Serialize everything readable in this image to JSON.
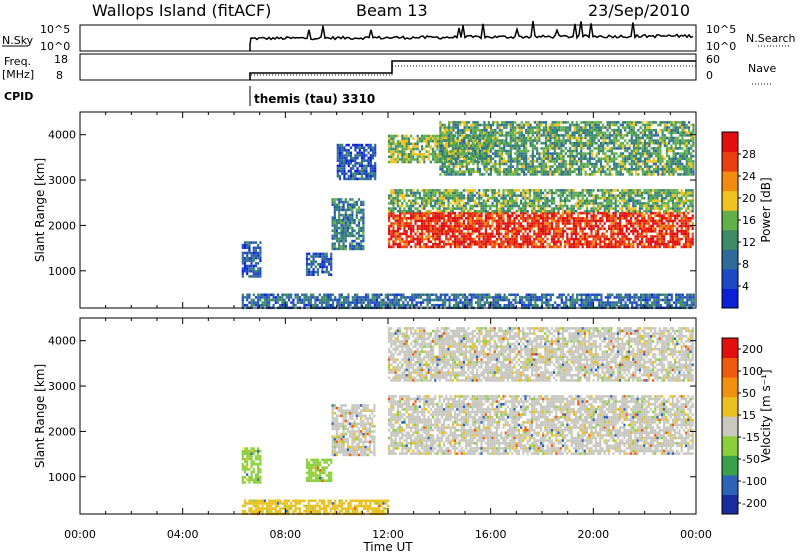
{
  "header": {
    "station": "Wallops Island (fitACF)",
    "beam": "Beam 13",
    "date": "23/Sep/2010"
  },
  "strips": {
    "nsky_label": "N.Sky",
    "nsky_ticks": [
      "10^5",
      "10^0"
    ],
    "nsearch_label": "N.Search",
    "nsearch_ticks": [
      "10^5",
      "10^0"
    ],
    "freq_label": "Freq.",
    "freq_unit": "[MHz]",
    "freq_ticks": [
      "18",
      "8"
    ],
    "nave_label": "Nave",
    "nave_ticks": [
      "60",
      "0"
    ],
    "cpid_label": "CPID",
    "cpid_value": "themis (tau) 3310"
  },
  "colors": {
    "power_scale": [
      "#0a1fd6",
      "#1f48c4",
      "#2e6a9a",
      "#3d8a66",
      "#62b04a",
      "#f2c220",
      "#f28c10",
      "#e84010",
      "#e01010"
    ],
    "velocity_scale": [
      "#1b2c9e",
      "#2f63b8",
      "#3aa04a",
      "#8ccf3c",
      "#c8c8c0",
      "#e8c020",
      "#f29010",
      "#f05a10",
      "#e01010"
    ],
    "ground_scatter": "#c8c8c0"
  },
  "chart_data": [
    {
      "type": "heatmap",
      "title": "Power",
      "xlabel": "",
      "ylabel": "Slant Range [km]",
      "x_ticks": [
        "00:00",
        "04:00",
        "08:00",
        "12:00",
        "16:00",
        "20:00",
        "00:00"
      ],
      "xlim_hours": [
        0,
        24
      ],
      "ylim": [
        180,
        4500
      ],
      "y_ticks": [
        1000,
        2000,
        3000,
        4000
      ],
      "colorbar_label": "Power [dB]",
      "colorbar_ticks": [
        "4",
        "8",
        "12",
        "16",
        "20",
        "24",
        "28"
      ],
      "colorbar_range": [
        0,
        30
      ],
      "regions": [
        {
          "t0": 6.3,
          "t1": 7.0,
          "r0": 900,
          "r1": 1650,
          "value": 6
        },
        {
          "t0": 8.8,
          "t1": 9.8,
          "r0": 900,
          "r1": 1400,
          "value": 7
        },
        {
          "t0": 9.8,
          "t1": 11.0,
          "r0": 1500,
          "r1": 2600,
          "value": 10
        },
        {
          "t0": 10.0,
          "t1": 11.5,
          "r0": 3000,
          "r1": 3800,
          "value": 6
        },
        {
          "t0": 12.0,
          "t1": 23.9,
          "r0": 1500,
          "r1": 2300,
          "value": 27
        },
        {
          "t0": 12.0,
          "t1": 23.9,
          "r0": 2300,
          "r1": 2800,
          "value": 14
        },
        {
          "t0": 12.0,
          "t1": 16.0,
          "r0": 3400,
          "r1": 4000,
          "value": 15
        },
        {
          "t0": 14.0,
          "t1": 23.9,
          "r0": 3100,
          "r1": 4300,
          "value": 13
        },
        {
          "t0": 6.3,
          "t1": 23.9,
          "r0": 200,
          "r1": 500,
          "value": 8
        }
      ]
    },
    {
      "type": "heatmap",
      "title": "Velocity",
      "xlabel": "Time UT",
      "ylabel": "Slant Range [km]",
      "x_ticks": [
        "00:00",
        "04:00",
        "08:00",
        "12:00",
        "16:00",
        "20:00",
        "00:00"
      ],
      "xlim_hours": [
        0,
        24
      ],
      "ylim": [
        180,
        4500
      ],
      "y_ticks": [
        1000,
        2000,
        3000,
        4000
      ],
      "colorbar_label": "Velocity [m s^-1]",
      "colorbar_ticks": [
        "200",
        "100",
        "50",
        "15",
        "-15",
        "-50",
        "-100",
        "-200"
      ],
      "colorbar_range": [
        -250,
        250
      ],
      "regions": [
        {
          "t0": 6.3,
          "t1": 7.0,
          "r0": 900,
          "r1": 1650,
          "value": -40
        },
        {
          "t0": 8.8,
          "t1": 9.8,
          "r0": 900,
          "r1": 1400,
          "value": -80
        },
        {
          "t0": 9.8,
          "t1": 11.5,
          "r0": 1500,
          "r1": 2600,
          "value": 0
        },
        {
          "t0": 12.0,
          "t1": 23.9,
          "r0": 1500,
          "r1": 2800,
          "value": 0
        },
        {
          "t0": 12.0,
          "t1": 23.9,
          "r0": 3100,
          "r1": 4300,
          "value": 0
        },
        {
          "t0": 6.3,
          "t1": 12.0,
          "r0": 200,
          "r1": 500,
          "value": 60
        }
      ]
    }
  ]
}
